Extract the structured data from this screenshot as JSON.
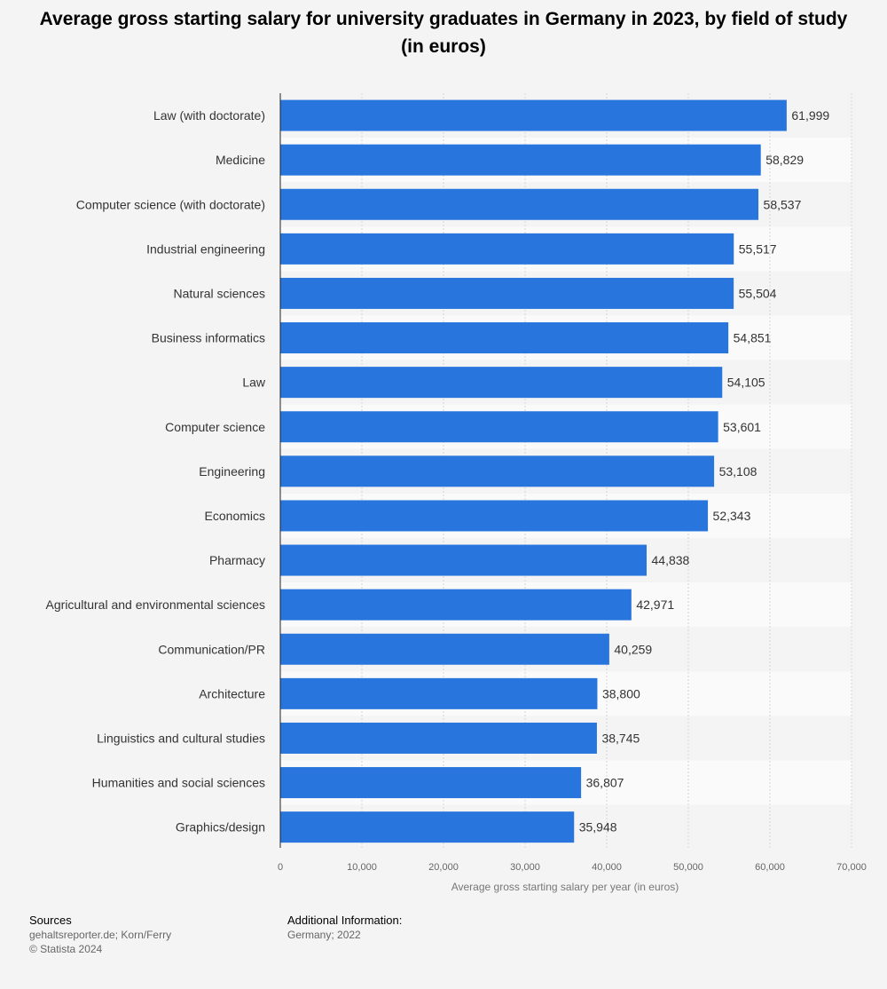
{
  "chart_data": {
    "type": "bar",
    "orientation": "horizontal",
    "title": "Average gross starting salary for university graduates in Germany in 2023, by field of study (in euros)",
    "categories": [
      "Law (with doctorate)",
      "Medicine",
      "Computer science (with doctorate)",
      "Industrial engineering",
      "Natural sciences",
      "Business informatics",
      "Law",
      "Computer science",
      "Engineering",
      "Economics",
      "Pharmacy",
      "Agricultural and environmental sciences",
      "Communication/PR",
      "Architecture",
      "Linguistics and cultural studies",
      "Humanities and social sciences",
      "Graphics/design"
    ],
    "values": [
      61999,
      58829,
      58537,
      55517,
      55504,
      54851,
      54105,
      53601,
      53108,
      52343,
      44838,
      42971,
      40259,
      38800,
      38745,
      36807,
      35948
    ],
    "value_labels": [
      "61,999",
      "58,829",
      "58,537",
      "55,517",
      "55,504",
      "54,851",
      "54,105",
      "53,601",
      "53,108",
      "52,343",
      "44,838",
      "42,971",
      "40,259",
      "38,800",
      "38,745",
      "36,807",
      "35,948"
    ],
    "xlabel": "Average gross starting salary per year (in euros)",
    "ylabel": "",
    "xlim": [
      0,
      70000
    ],
    "x_ticks": [
      0,
      10000,
      20000,
      30000,
      40000,
      50000,
      60000,
      70000
    ],
    "x_tick_labels": [
      "0",
      "10,000",
      "20,000",
      "30,000",
      "40,000",
      "50,000",
      "60,000",
      "70,000"
    ],
    "grid": true,
    "bar_color": "#2876dd"
  },
  "footer": {
    "sources_heading": "Sources",
    "sources_line1": "gehaltsreporter.de; Korn/Ferry",
    "sources_line2": "© Statista 2024",
    "additional_heading": "Additional Information:",
    "additional_line1": "Germany; 2022"
  }
}
